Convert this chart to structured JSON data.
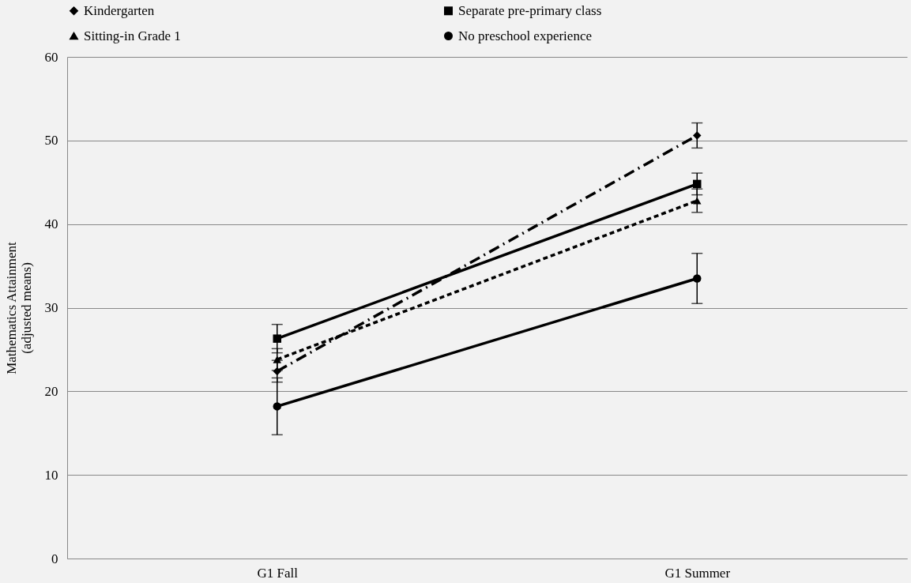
{
  "chart_data": {
    "type": "line",
    "ylabel": "Mathematics Attainment\n(adjusted means)",
    "categories": [
      "G1 Fall",
      "G1 Summer"
    ],
    "ylim": [
      0,
      60
    ],
    "yticks": [
      0,
      10,
      20,
      30,
      40,
      50,
      60
    ],
    "grid": "y",
    "legend": "top",
    "series": [
      {
        "name": "Kindergarten",
        "color": "#000000",
        "values": [
          22.4,
          50.6
        ],
        "errors": [
          1.3,
          1.5
        ],
        "marker": "diamond",
        "line_style": "dashdot"
      },
      {
        "name": "Separate pre-primary class",
        "color": "#000000",
        "values": [
          26.3,
          44.8
        ],
        "errors": [
          1.7,
          1.3
        ],
        "marker": "square",
        "line_style": "solid"
      },
      {
        "name": "Sitting-in Grade 1",
        "color": "#000000",
        "values": [
          23.8,
          42.8
        ],
        "errors": [
          1.3,
          1.4
        ],
        "marker": "triangle",
        "line_style": "dashed"
      },
      {
        "name": "No preschool experience",
        "color": "#000000",
        "values": [
          18.2,
          33.5
        ],
        "errors": [
          3.4,
          3.0
        ],
        "marker": "circle",
        "line_style": "solid"
      }
    ]
  }
}
